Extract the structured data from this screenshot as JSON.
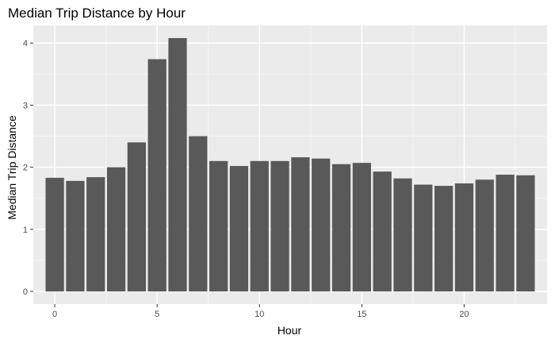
{
  "chart_data": {
    "type": "bar",
    "title": "Median Trip Distance by Hour",
    "xlabel": "Hour",
    "ylabel": "Median Trip Distance",
    "x": [
      0,
      1,
      2,
      3,
      4,
      5,
      6,
      7,
      8,
      9,
      10,
      11,
      12,
      13,
      14,
      15,
      16,
      17,
      18,
      19,
      20,
      21,
      22,
      23
    ],
    "values": [
      1.83,
      1.78,
      1.84,
      2.0,
      2.4,
      3.74,
      4.08,
      2.5,
      2.1,
      2.02,
      2.1,
      2.1,
      2.16,
      2.14,
      2.05,
      2.07,
      1.93,
      1.82,
      1.72,
      1.7,
      1.74,
      1.8,
      1.88,
      1.87
    ],
    "xticks": [
      0,
      5,
      10,
      15,
      20
    ],
    "yticks": [
      0,
      1,
      2,
      3,
      4
    ],
    "xlim": [
      -1.05,
      24.05
    ],
    "ylim": [
      -0.204,
      4.284
    ],
    "grid": true,
    "legend": "none",
    "colors": {
      "bar": "#595959",
      "panel": "#ebebeb",
      "grid_major": "#ffffff",
      "grid_minor": "#f5f5f5",
      "tick": "#333333"
    }
  }
}
